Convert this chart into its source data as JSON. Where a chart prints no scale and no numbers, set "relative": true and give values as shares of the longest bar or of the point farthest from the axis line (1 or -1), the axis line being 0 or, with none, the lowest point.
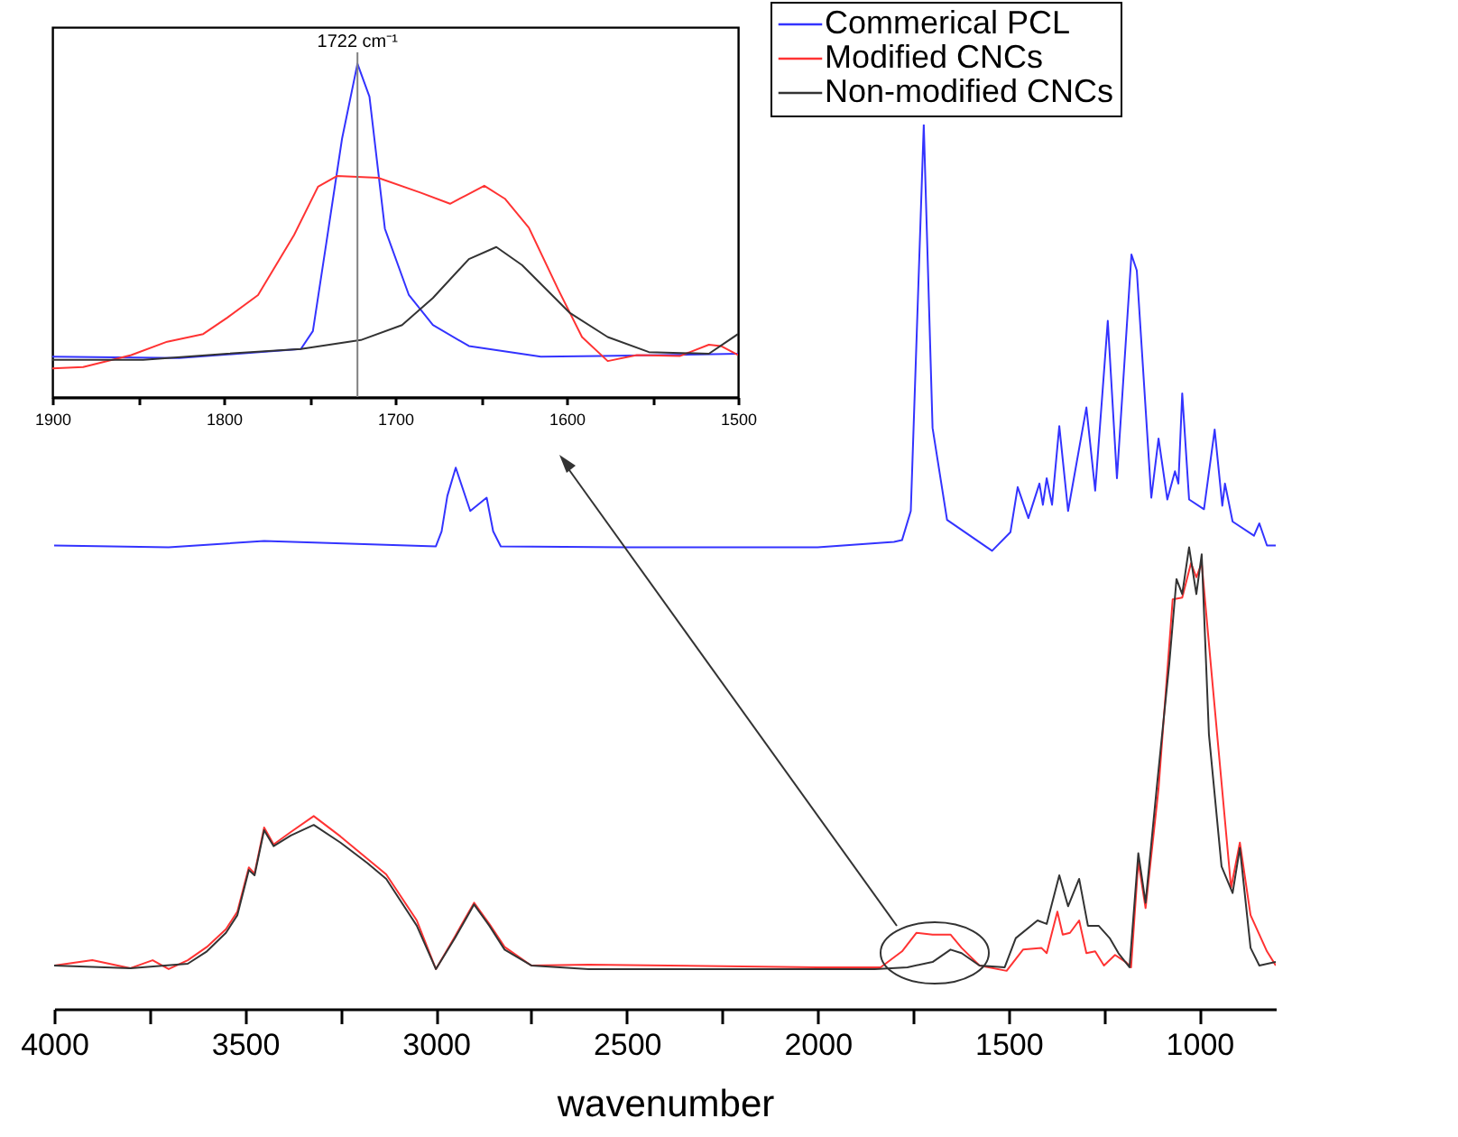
{
  "chart_data": [
    {
      "type": "line",
      "relative": true,
      "xlabel": "wavenumber",
      "xlim": [
        4000,
        800
      ],
      "xticks": [
        4000,
        {
          "value": 3750,
          "label": null
        },
        3500,
        {
          "value": 3250,
          "label": null
        },
        3000,
        {
          "value": 2750,
          "label": null
        },
        2500,
        {
          "value": 2250,
          "label": null
        },
        2000,
        {
          "value": 1750,
          "label": null
        },
        1500,
        {
          "value": 1250,
          "label": null
        },
        1000
      ],
      "grid": false,
      "legend": "top right",
      "marker": "none",
      "line_style": "solid",
      "series": [
        {
          "name": "Commerical PCL",
          "color": "#3333ff",
          "x": [
            4000,
            3700,
            3450,
            3000,
            2985,
            2970,
            2948,
            2910,
            2867,
            2850,
            2830,
            2500,
            2000,
            1800,
            1779,
            1756,
            1722,
            1699,
            1661,
            1557,
            1543,
            1495,
            1476,
            1448,
            1419,
            1410,
            1400,
            1386,
            1367,
            1344,
            1296,
            1273,
            1240,
            1216,
            1178,
            1164,
            1126,
            1107,
            1084,
            1064,
            1055,
            1045,
            1027,
            988,
            960,
            940,
            933,
            913,
            857,
            843,
            823,
            800
          ],
          "values": [
            0.524,
            0.522,
            0.529,
            0.523,
            0.54,
            0.58,
            0.612,
            0.563,
            0.578,
            0.54,
            0.523,
            0.522,
            0.522,
            0.528,
            0.53,
            0.563,
            1,
            0.657,
            0.553,
            0.522,
            0.518,
            0.539,
            0.59,
            0.555,
            0.594,
            0.57,
            0.6,
            0.57,
            0.659,
            0.563,
            0.68,
            0.586,
            0.778,
            0.6,
            0.853,
            0.835,
            0.578,
            0.645,
            0.576,
            0.608,
            0.594,
            0.696,
            0.576,
            0.565,
            0.655,
            0.569,
            0.594,
            0.551,
            0.535,
            0.549,
            0.524,
            0.524
          ]
        },
        {
          "name": "Modified CNCs",
          "color": "#ff3333",
          "x": [
            4000,
            3900,
            3800,
            3742,
            3700,
            3650,
            3600,
            3550,
            3520,
            3490,
            3475,
            3450,
            3425,
            3380,
            3320,
            3250,
            3180,
            3130,
            3050,
            3000,
            2950,
            2900,
            2860,
            2820,
            2750,
            2600,
            2000,
            1835,
            1779,
            1741,
            1699,
            1652,
            1623,
            1576,
            1505,
            1462,
            1414,
            1400,
            1372,
            1358,
            1339,
            1315,
            1296,
            1273,
            1250,
            1221,
            1193,
            1179,
            1160,
            1141,
            1107,
            1070,
            1045,
            1022,
            1008,
            994,
            965,
            917,
            894,
            866,
            823,
            800
          ],
          "values": [
            0.049,
            0.055,
            0.046,
            0.055,
            0.045,
            0.055,
            0.07,
            0.09,
            0.11,
            0.16,
            0.153,
            0.205,
            0.186,
            0.2,
            0.218,
            0.195,
            0.17,
            0.152,
            0.1,
            0.045,
            0.082,
            0.12,
            0.096,
            0.07,
            0.049,
            0.05,
            0.047,
            0.047,
            0.065,
            0.086,
            0.084,
            0.084,
            0.069,
            0.049,
            0.043,
            0.067,
            0.069,
            0.063,
            0.11,
            0.084,
            0.086,
            0.1,
            0.063,
            0.065,
            0.049,
            0.061,
            0.053,
            0.047,
            0.167,
            0.114,
            0.249,
            0.463,
            0.465,
            0.504,
            0.488,
            0.504,
            0.365,
            0.137,
            0.188,
            0.106,
            0.065,
            0.049
          ]
        },
        {
          "name": "Non-modified CNCs",
          "color": "#333333",
          "x": [
            4000,
            3800,
            3650,
            3600,
            3550,
            3520,
            3490,
            3475,
            3450,
            3425,
            3380,
            3320,
            3250,
            3180,
            3130,
            3050,
            3000,
            2950,
            2900,
            2860,
            2820,
            2750,
            2600,
            2000,
            1850,
            1765,
            1699,
            1652,
            1623,
            1576,
            1510,
            1481,
            1424,
            1400,
            1367,
            1344,
            1315,
            1292,
            1264,
            1235,
            1212,
            1183,
            1160,
            1141,
            1112,
            1079,
            1060,
            1045,
            1027,
            1008,
            994,
            975,
            942,
            913,
            894,
            866,
            843,
            800
          ],
          "values": [
            0.049,
            0.046,
            0.051,
            0.065,
            0.086,
            0.106,
            0.157,
            0.151,
            0.202,
            0.184,
            0.196,
            0.208,
            0.188,
            0.165,
            0.147,
            0.094,
            0.045,
            0.08,
            0.118,
            0.094,
            0.067,
            0.049,
            0.045,
            0.045,
            0.045,
            0.047,
            0.053,
            0.067,
            0.063,
            0.049,
            0.047,
            0.08,
            0.1,
            0.096,
            0.151,
            0.116,
            0.147,
            0.094,
            0.094,
            0.08,
            0.063,
            0.047,
            0.176,
            0.12,
            0.249,
            0.39,
            0.486,
            0.469,
            0.522,
            0.469,
            0.514,
            0.31,
            0.161,
            0.131,
            0.182,
            0.069,
            0.049,
            0.053
          ]
        }
      ]
    },
    {
      "type": "line",
      "relative": true,
      "xlim": [
        1900,
        1500
      ],
      "xticks": [
        1900,
        {
          "value": 1850,
          "label": null
        },
        1800,
        {
          "value": 1750,
          "label": null
        },
        1700,
        {
          "value": 1650,
          "label": null
        },
        1600,
        {
          "value": 1550,
          "label": null
        },
        1500
      ],
      "grid": false,
      "marker": "none",
      "line_style": "solid",
      "ref_lines": [
        {
          "axis": "x",
          "value": 1722,
          "label": "1722 cm⁻¹",
          "color": "#808080"
        }
      ],
      "series": [
        {
          "color": "#3333ff",
          "x": [
            1900,
            1826,
            1755,
            1748,
            1740,
            1731,
            1722,
            1715,
            1706,
            1692,
            1678,
            1657,
            1615,
            1580,
            1500
          ],
          "values": [
            0.121,
            0.117,
            0.144,
            0.198,
            0.468,
            0.775,
            1,
            0.901,
            0.505,
            0.306,
            0.216,
            0.153,
            0.121,
            0.123,
            0.13
          ]
        },
        {
          "color": "#ff3333",
          "x": [
            1900,
            1882,
            1854,
            1833,
            1812,
            1798,
            1780,
            1759,
            1745,
            1734,
            1710,
            1685,
            1668,
            1659,
            1648,
            1636,
            1622,
            1605,
            1591,
            1576,
            1559,
            1534,
            1517,
            1510,
            1500
          ],
          "values": [
            0.086,
            0.09,
            0.126,
            0.166,
            0.189,
            0.238,
            0.306,
            0.486,
            0.631,
            0.663,
            0.658,
            0.613,
            0.58,
            0.604,
            0.634,
            0.595,
            0.508,
            0.324,
            0.18,
            0.108,
            0.126,
            0.123,
            0.157,
            0.153,
            0.126
          ]
        },
        {
          "color": "#333333",
          "x": [
            1900,
            1847,
            1798,
            1755,
            1720,
            1696,
            1678,
            1657,
            1641,
            1626,
            1598,
            1576,
            1552,
            1517,
            1500
          ],
          "values": [
            0.112,
            0.112,
            0.13,
            0.144,
            0.171,
            0.216,
            0.297,
            0.414,
            0.45,
            0.396,
            0.252,
            0.18,
            0.135,
            0.13,
            0.189
          ]
        }
      ]
    }
  ]
}
